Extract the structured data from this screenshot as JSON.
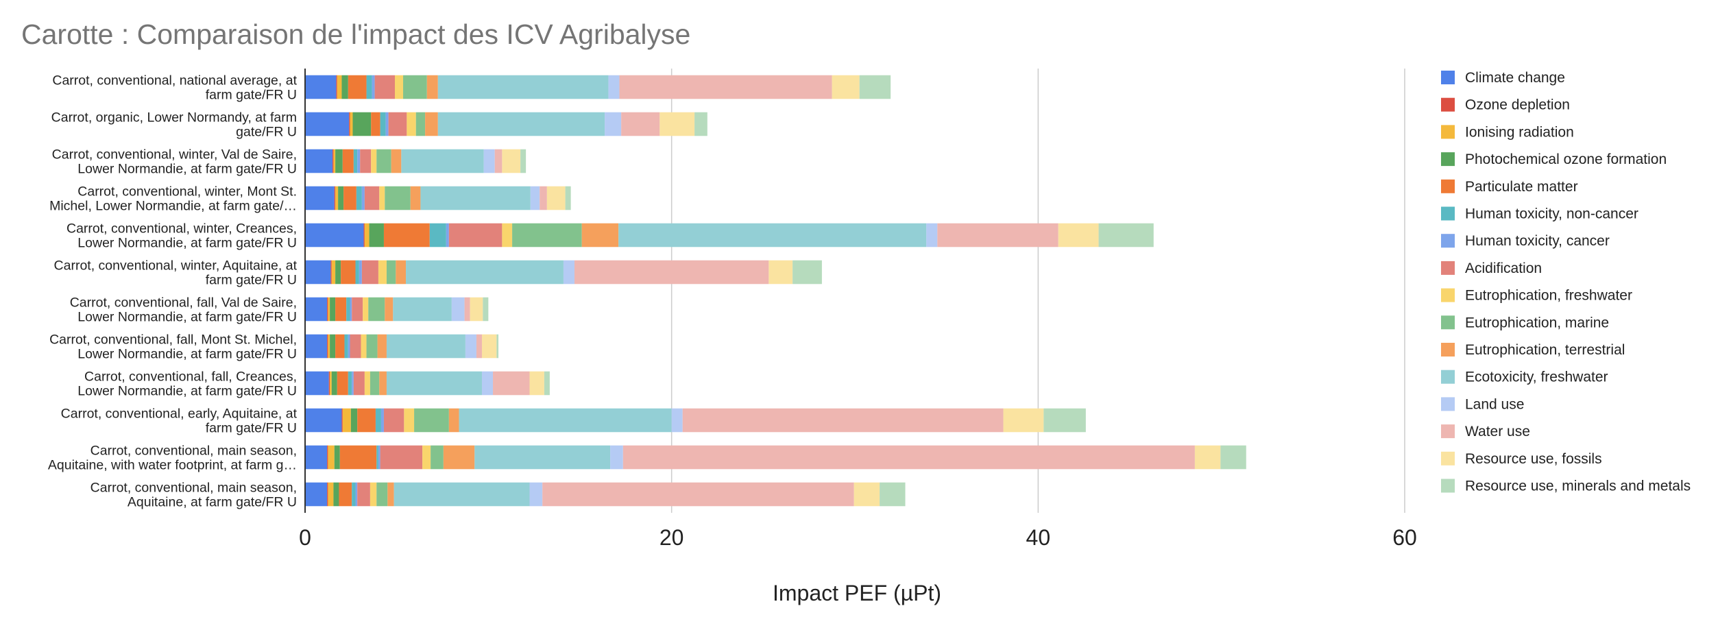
{
  "chart_data": {
    "type": "bar",
    "orientation": "horizontal",
    "stacked": true,
    "title": "Carotte : Comparaison de l'impact des ICV Agribalyse",
    "xlabel": "Impact PEF (µPt)",
    "ylabel": "",
    "xlim": [
      0,
      60
    ],
    "xticks": [
      0,
      20,
      40,
      60
    ],
    "grid": true,
    "legend_position": "right",
    "categories": [
      [
        "Carrot, conventional, national average, at",
        "farm gate/FR U"
      ],
      [
        "Carrot, organic, Lower Normandy, at farm",
        "gate/FR U"
      ],
      [
        "Carrot, conventional, winter, Val de Saire,",
        "Lower Normandie, at farm gate/FR U"
      ],
      [
        "Carrot, conventional, winter, Mont St.",
        "Michel, Lower Normandie, at farm gate/…"
      ],
      [
        "Carrot, conventional, winter, Creances,",
        "Lower Normandie, at farm gate/FR U"
      ],
      [
        "Carrot, conventional, winter, Aquitaine, at",
        "farm gate/FR U"
      ],
      [
        "Carrot, conventional, fall, Val de Saire,",
        "Lower Normandie, at farm gate/FR U"
      ],
      [
        "Carrot, conventional, fall, Mont St. Michel,",
        "Lower Normandie, at farm gate/FR U"
      ],
      [
        "Carrot, conventional, fall, Creances,",
        "Lower Normandie, at farm gate/FR U"
      ],
      [
        "Carrot, conventional, early, Aquitaine, at",
        "farm gate/FR U"
      ],
      [
        "Carrot, conventional, main season,",
        "Aquitaine, with water footprint, at farm g…"
      ],
      [
        "Carrot, conventional, main season,",
        "Aquitaine, at farm gate/FR U"
      ]
    ],
    "series": [
      {
        "name": "Climate change",
        "color": "#4f81e9",
        "values": [
          1.7,
          2.4,
          1.5,
          1.6,
          3.2,
          1.4,
          1.2,
          1.2,
          1.3,
          2.0,
          1.2,
          1.2
        ]
      },
      {
        "name": "Ozone depletion",
        "color": "#dc4e41",
        "values": [
          0.05,
          0.05,
          0.05,
          0.05,
          0.05,
          0.05,
          0.05,
          0.05,
          0.05,
          0.05,
          0.05,
          0.05
        ]
      },
      {
        "name": "Ionising radiation",
        "color": "#f4b93c",
        "values": [
          0.25,
          0.15,
          0.1,
          0.15,
          0.25,
          0.2,
          0.1,
          0.1,
          0.1,
          0.45,
          0.35,
          0.3
        ]
      },
      {
        "name": "Photochemical ozone formation",
        "color": "#58a55c",
        "values": [
          0.35,
          1.0,
          0.4,
          0.3,
          0.8,
          0.3,
          0.3,
          0.3,
          0.3,
          0.35,
          0.3,
          0.3
        ]
      },
      {
        "name": "Particulate matter",
        "color": "#ef7a35",
        "values": [
          1.0,
          0.5,
          0.6,
          0.7,
          2.5,
          0.8,
          0.6,
          0.5,
          0.6,
          1.0,
          2.0,
          0.7
        ]
      },
      {
        "name": "Human toxicity, non-cancer",
        "color": "#5ab9c3",
        "values": [
          0.3,
          0.3,
          0.2,
          0.3,
          0.9,
          0.2,
          0.2,
          0.2,
          0.2,
          0.3,
          0.1,
          0.2
        ]
      },
      {
        "name": "Human toxicity, cancer",
        "color": "#7ea5eb",
        "values": [
          0.15,
          0.15,
          0.15,
          0.15,
          0.15,
          0.15,
          0.1,
          0.1,
          0.1,
          0.15,
          0.1,
          0.1
        ]
      },
      {
        "name": "Acidification",
        "color": "#e2827a",
        "values": [
          1.1,
          1.0,
          0.6,
          0.8,
          2.9,
          0.9,
          0.6,
          0.6,
          0.6,
          1.1,
          2.3,
          0.7
        ]
      },
      {
        "name": "Eutrophication, freshwater",
        "color": "#f9d56c",
        "values": [
          0.45,
          0.5,
          0.3,
          0.3,
          0.55,
          0.45,
          0.3,
          0.3,
          0.3,
          0.55,
          0.45,
          0.35
        ]
      },
      {
        "name": "Eutrophication, marine",
        "color": "#82c28d",
        "values": [
          1.3,
          0.5,
          0.8,
          1.4,
          3.8,
          0.5,
          0.9,
          0.6,
          0.5,
          1.9,
          0.7,
          0.6
        ]
      },
      {
        "name": "Eutrophication, terrestrial",
        "color": "#f5a05c",
        "values": [
          0.6,
          0.7,
          0.55,
          0.55,
          2.0,
          0.55,
          0.45,
          0.5,
          0.4,
          0.55,
          1.7,
          0.35
        ]
      },
      {
        "name": "Ecotoxicity, freshwater",
        "color": "#93cfd5",
        "values": [
          9.3,
          9.1,
          4.5,
          6.0,
          16.8,
          8.6,
          3.2,
          4.3,
          5.2,
          11.6,
          7.4,
          7.4
        ]
      },
      {
        "name": "Land use",
        "color": "#b5cbf4",
        "values": [
          0.6,
          0.9,
          0.6,
          0.5,
          0.6,
          0.6,
          0.7,
          0.6,
          0.6,
          0.6,
          0.7,
          0.7
        ]
      },
      {
        "name": "Water use",
        "color": "#eeb6b1",
        "values": [
          11.6,
          2.1,
          0.4,
          0.4,
          6.6,
          10.6,
          0.3,
          0.3,
          2.0,
          17.5,
          31.2,
          17.0
        ]
      },
      {
        "name": "Resource use, fossils",
        "color": "#fae3a0",
        "values": [
          1.5,
          1.9,
          1.0,
          1.0,
          2.2,
          1.3,
          0.7,
          0.8,
          0.8,
          2.2,
          1.4,
          1.4
        ]
      },
      {
        "name": "Resource use, minerals and metals",
        "color": "#b6dbbd",
        "values": [
          1.7,
          0.7,
          0.3,
          0.3,
          3.0,
          1.6,
          0.3,
          0.1,
          0.3,
          2.3,
          1.4,
          1.4
        ]
      }
    ]
  }
}
